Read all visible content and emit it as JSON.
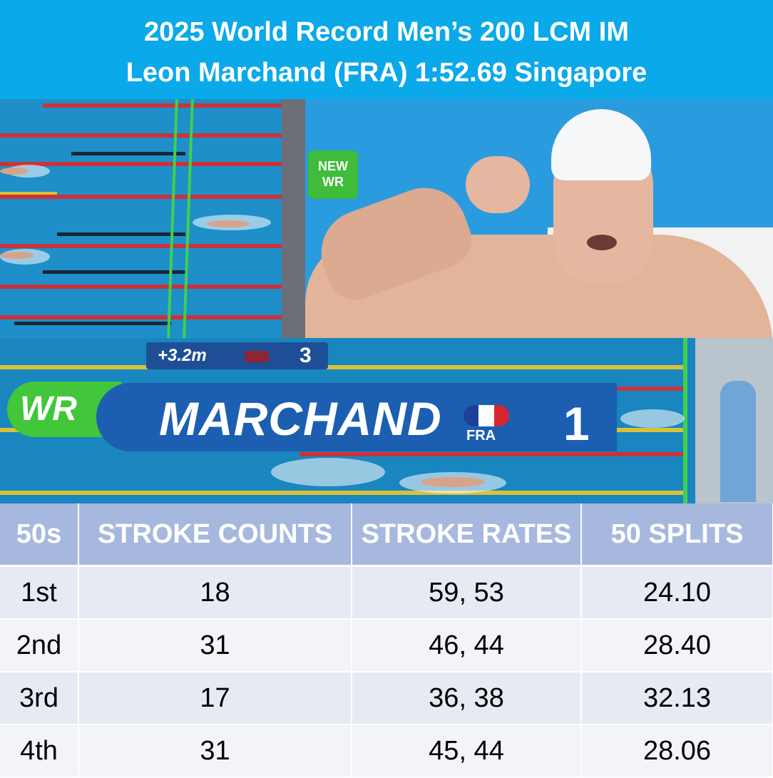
{
  "header": {
    "title_line1": "2025 World Record Men’s 200 LCM IM",
    "title_line2": "Leon Marchand (FRA) 1:52.69 Singapore"
  },
  "photos": {
    "badge": {
      "line1": "NEW",
      "line2": "WR"
    },
    "scoreboard": {
      "lead_distance": "+3.2m",
      "second_place": "3",
      "record_tag": "WR",
      "swimmer_name": "MARCHAND",
      "country": "FRA",
      "place": "1"
    }
  },
  "table": {
    "headers": [
      "50s",
      "STROKE COUNTS",
      "STROKE RATES",
      "50 SPLITS"
    ],
    "rows": [
      [
        "1st",
        "18",
        "59, 53",
        "24.10"
      ],
      [
        "2nd",
        "31",
        "46, 44",
        "28.40"
      ],
      [
        "3rd",
        "17",
        "36, 38",
        "32.13"
      ],
      [
        "4th",
        "31",
        "45, 44",
        "28.06"
      ]
    ]
  },
  "colors": {
    "header_bg": "#0aa9ea",
    "table_header_bg": "#a7b8de",
    "wr_green": "#42c63a",
    "name_bar_blue": "#1c5fb1"
  }
}
